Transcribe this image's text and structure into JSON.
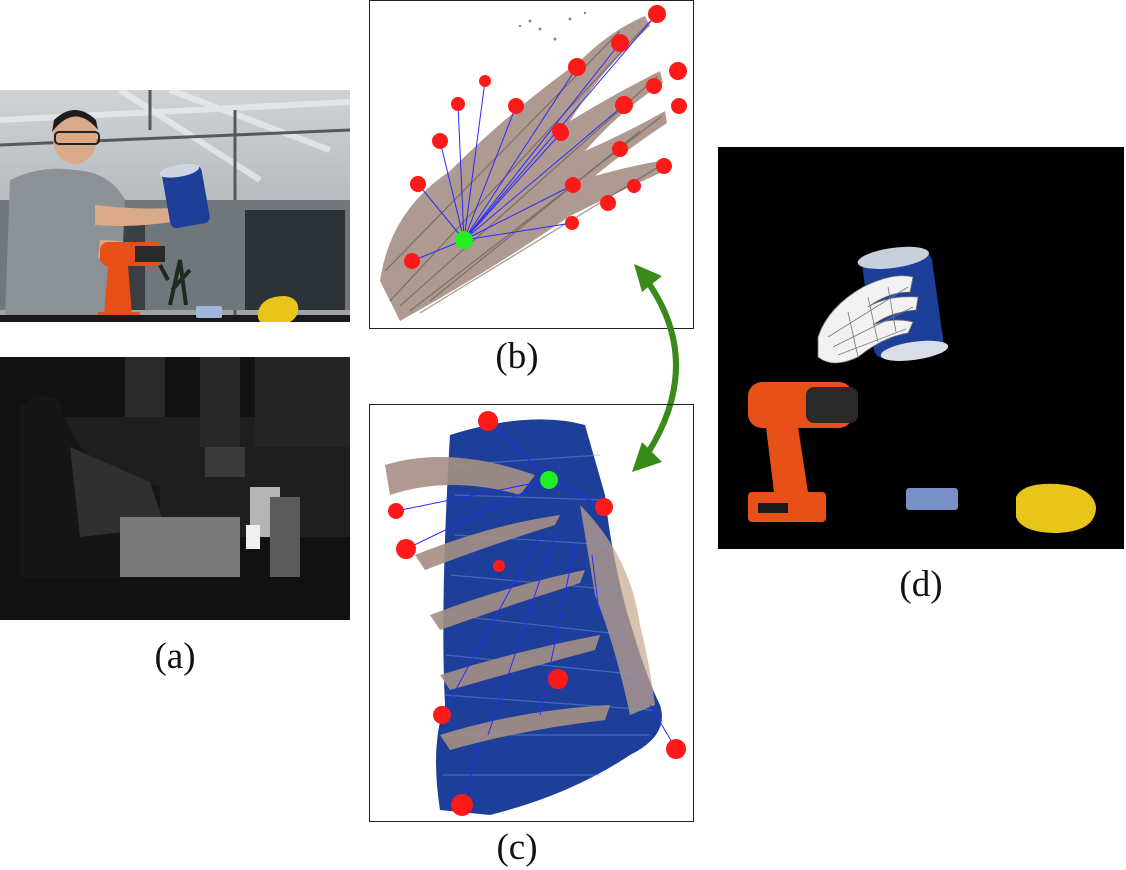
{
  "figure": {
    "panel_a_label": "(a)",
    "panel_b_label": "(b)",
    "panel_c_label": "(c)",
    "panel_d_label": "(d)"
  },
  "colors": {
    "keypoint_red": "#ff1a1a",
    "anchor_green": "#22ee22",
    "link_blue": "#2a2aff",
    "arrow_green": "#3a8a1a",
    "can_blue": "#1d3f9a",
    "drill_orange": "#e8501a",
    "sponge_yellow": "#e8c51a"
  },
  "icons": {
    "double_arrow": "double-headed-curved-arrow-icon"
  }
}
